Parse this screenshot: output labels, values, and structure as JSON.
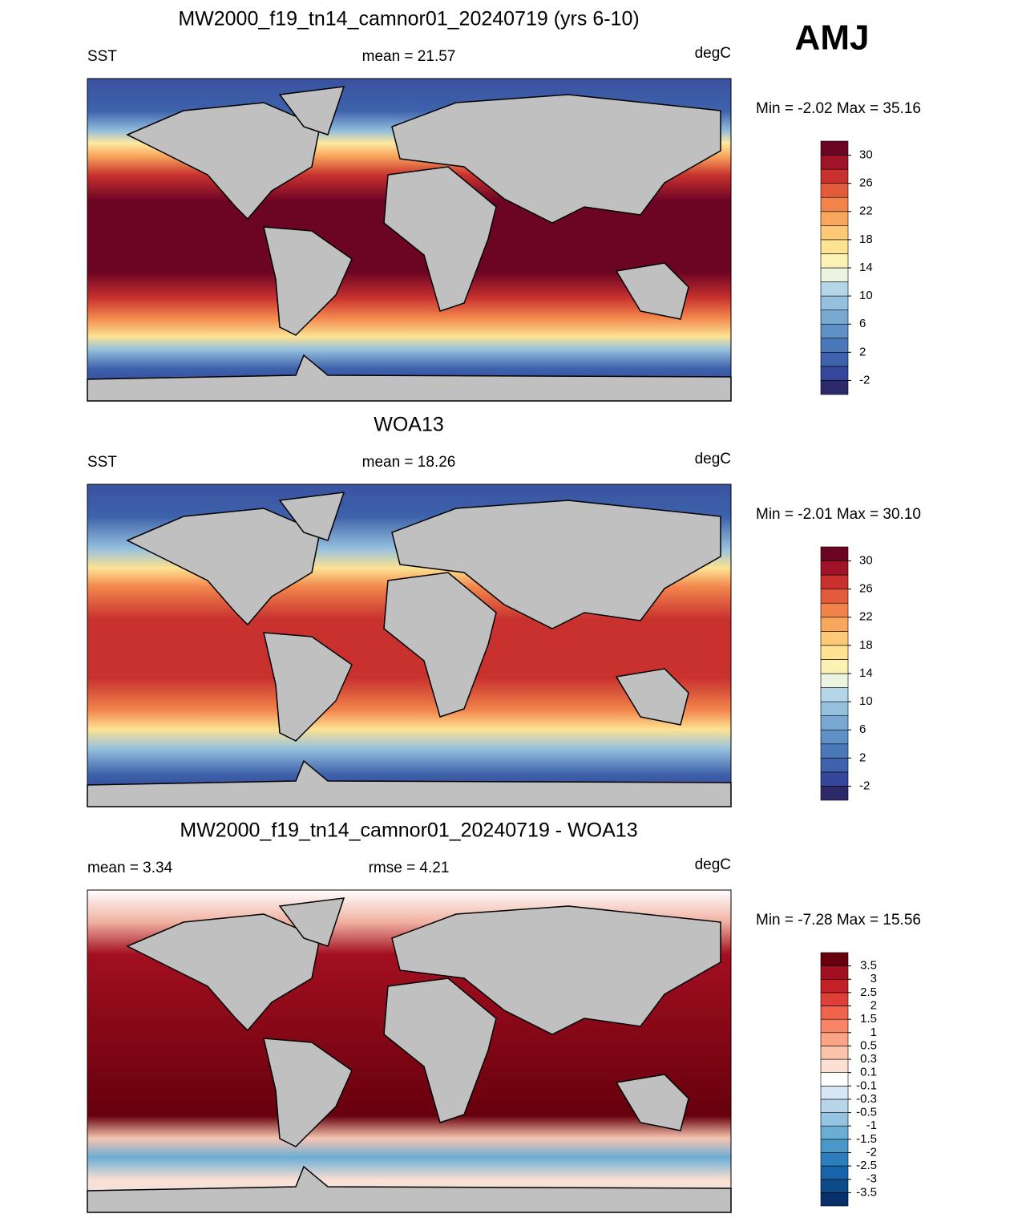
{
  "season": "AMJ",
  "chart_data": [
    {
      "type": "map",
      "title": "MW2000_f19_tn14_camnor01_20240719 (yrs 6-10)",
      "left": "SST",
      "center": "mean =  21.57",
      "right": "degC",
      "minmax": "Min =  -2.02 Max =  35.16",
      "colorbar": {
        "scale": "linear",
        "ylim": [
          -4,
          32
        ],
        "yticks": [
          -2,
          2,
          6,
          10,
          14,
          18,
          22,
          26,
          30
        ],
        "colors": [
          "#2d2a6b",
          "#34479a",
          "#3e62ab",
          "#4a78b8",
          "#5f91c6",
          "#79a9d2",
          "#96c1de",
          "#b4d6e8",
          "#ecf3e0",
          "#fbf2b3",
          "#fde392",
          "#fdc877",
          "#f9a75d",
          "#f2844b",
          "#e25c3b",
          "#c8312e",
          "#a01328",
          "#6c0424"
        ]
      }
    },
    {
      "type": "map",
      "title": "WOA13",
      "left": "SST",
      "center": "mean =  18.26",
      "right": "degC",
      "minmax": "Min =  -2.01 Max =  30.10",
      "colorbar": {
        "scale": "linear",
        "ylim": [
          -4,
          32
        ],
        "yticks": [
          -2,
          2,
          6,
          10,
          14,
          18,
          22,
          26,
          30
        ],
        "colors": [
          "#2d2a6b",
          "#34479a",
          "#3e62ab",
          "#4a78b8",
          "#5f91c6",
          "#79a9d2",
          "#96c1de",
          "#b4d6e8",
          "#ecf3e0",
          "#fbf2b3",
          "#fde392",
          "#fdc877",
          "#f9a75d",
          "#f2844b",
          "#e25c3b",
          "#c8312e",
          "#a01328",
          "#6c0424"
        ]
      }
    },
    {
      "type": "map",
      "title": "MW2000_f19_tn14_camnor01_20240719 - WOA13",
      "left": "mean =   3.34",
      "center": "rmse =   4.21",
      "right": "degC",
      "minmax": "Min =  -7.28 Max =  15.56",
      "colorbar": {
        "scale": "index",
        "levels": [
          -3.5,
          -3,
          -2.5,
          -2,
          -1.5,
          -1,
          -0.5,
          -0.3,
          -0.1,
          0.1,
          0.3,
          0.5,
          1,
          1.5,
          2,
          2.5,
          3,
          3.5
        ],
        "colors": [
          "#08306b",
          "#0c4a8a",
          "#1764ab",
          "#2c7dbb",
          "#4a98c9",
          "#6aaed6",
          "#94c4df",
          "#b8d5ea",
          "#d6e6f4",
          "#ffffff",
          "#fde0d2",
          "#fcc3ab",
          "#fca486",
          "#f98465",
          "#f0644d",
          "#de3f36",
          "#c42127",
          "#a20f20",
          "#67000d"
        ]
      }
    }
  ]
}
